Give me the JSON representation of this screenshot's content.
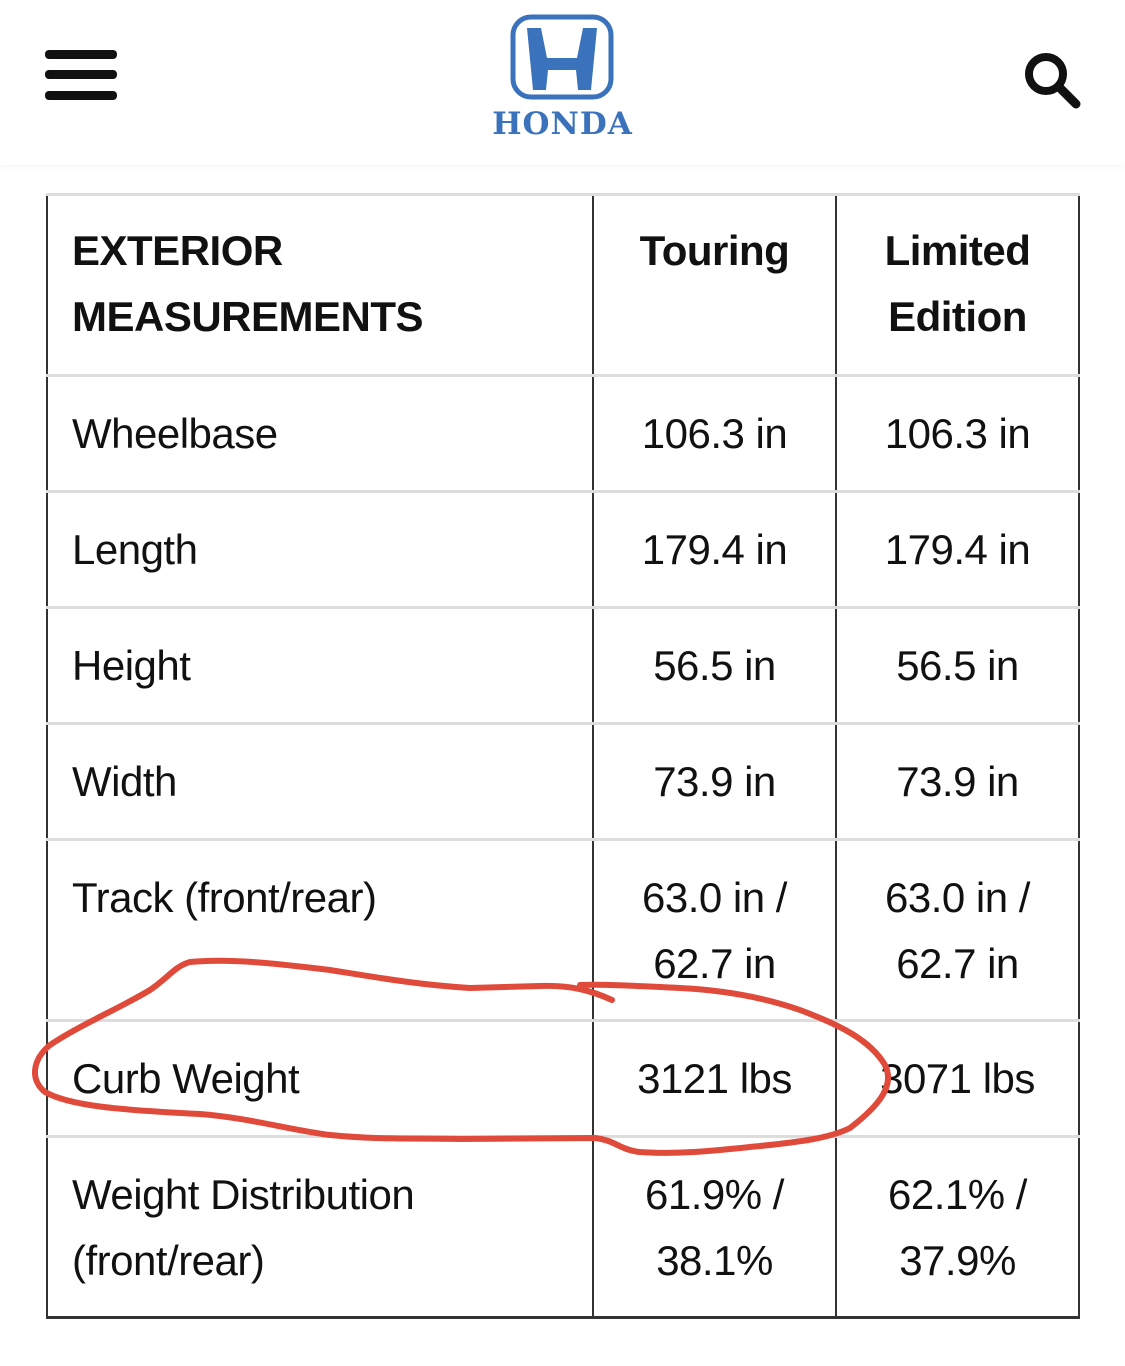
{
  "header": {
    "menu_icon": "hamburger-icon",
    "logo_text": "HONDA",
    "search_icon": "search-icon",
    "brand_color": "#3a73bb"
  },
  "table": {
    "headers": [
      "EXTERIOR MEASUREMENTS",
      "Touring",
      "Limited Edition"
    ],
    "rows": [
      {
        "label": "Wheelbase",
        "touring": "106.3 in",
        "limited": "106.3 in"
      },
      {
        "label": "Length",
        "touring": "179.4 in",
        "limited": "179.4 in"
      },
      {
        "label": "Height",
        "touring": "56.5 in",
        "limited": "56.5 in"
      },
      {
        "label": "Width",
        "touring": "73.9 in",
        "limited": "73.9 in"
      },
      {
        "label": "Track (front/rear)",
        "touring": "63.0 in / 62.7 in",
        "limited": "63.0 in / 62.7 in"
      },
      {
        "label": "Curb Weight",
        "touring": "3121 lbs",
        "limited": "3071 lbs"
      },
      {
        "label": "Weight Distribution (front/rear)",
        "touring": "61.9% / 38.1%",
        "limited": "62.1% / 37.9%"
      }
    ]
  },
  "annotation": {
    "color": "#e04a3a",
    "highlighted_row": "Curb Weight"
  }
}
